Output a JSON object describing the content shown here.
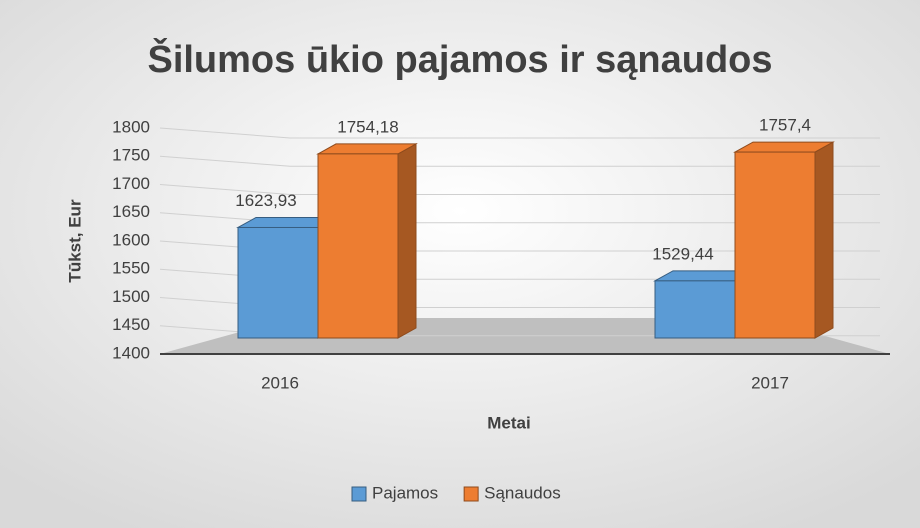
{
  "chart_data": {
    "type": "bar3d",
    "title": "Šilumos ūkio pajamos ir sąnaudos",
    "x_label": "Metai",
    "y_label": "Tūkst, Eur",
    "categories": [
      "2016",
      "2017"
    ],
    "series": [
      {
        "name": "Pajamos",
        "color": "#5b9bd5",
        "values": [
          1623.93,
          1529.44
        ],
        "value_labels": [
          "1623,93",
          "1529,44"
        ]
      },
      {
        "name": "Sąnaudos",
        "color": "#ed7d31",
        "values": [
          1754.18,
          1757.4
        ],
        "value_labels": [
          "1754,18",
          "1757,4"
        ]
      }
    ],
    "ylim": [
      1400,
      1800
    ],
    "yticks": [
      1400,
      1450,
      1500,
      1550,
      1600,
      1650,
      1700,
      1750,
      1800
    ],
    "grid": true,
    "legend": "bottom"
  }
}
